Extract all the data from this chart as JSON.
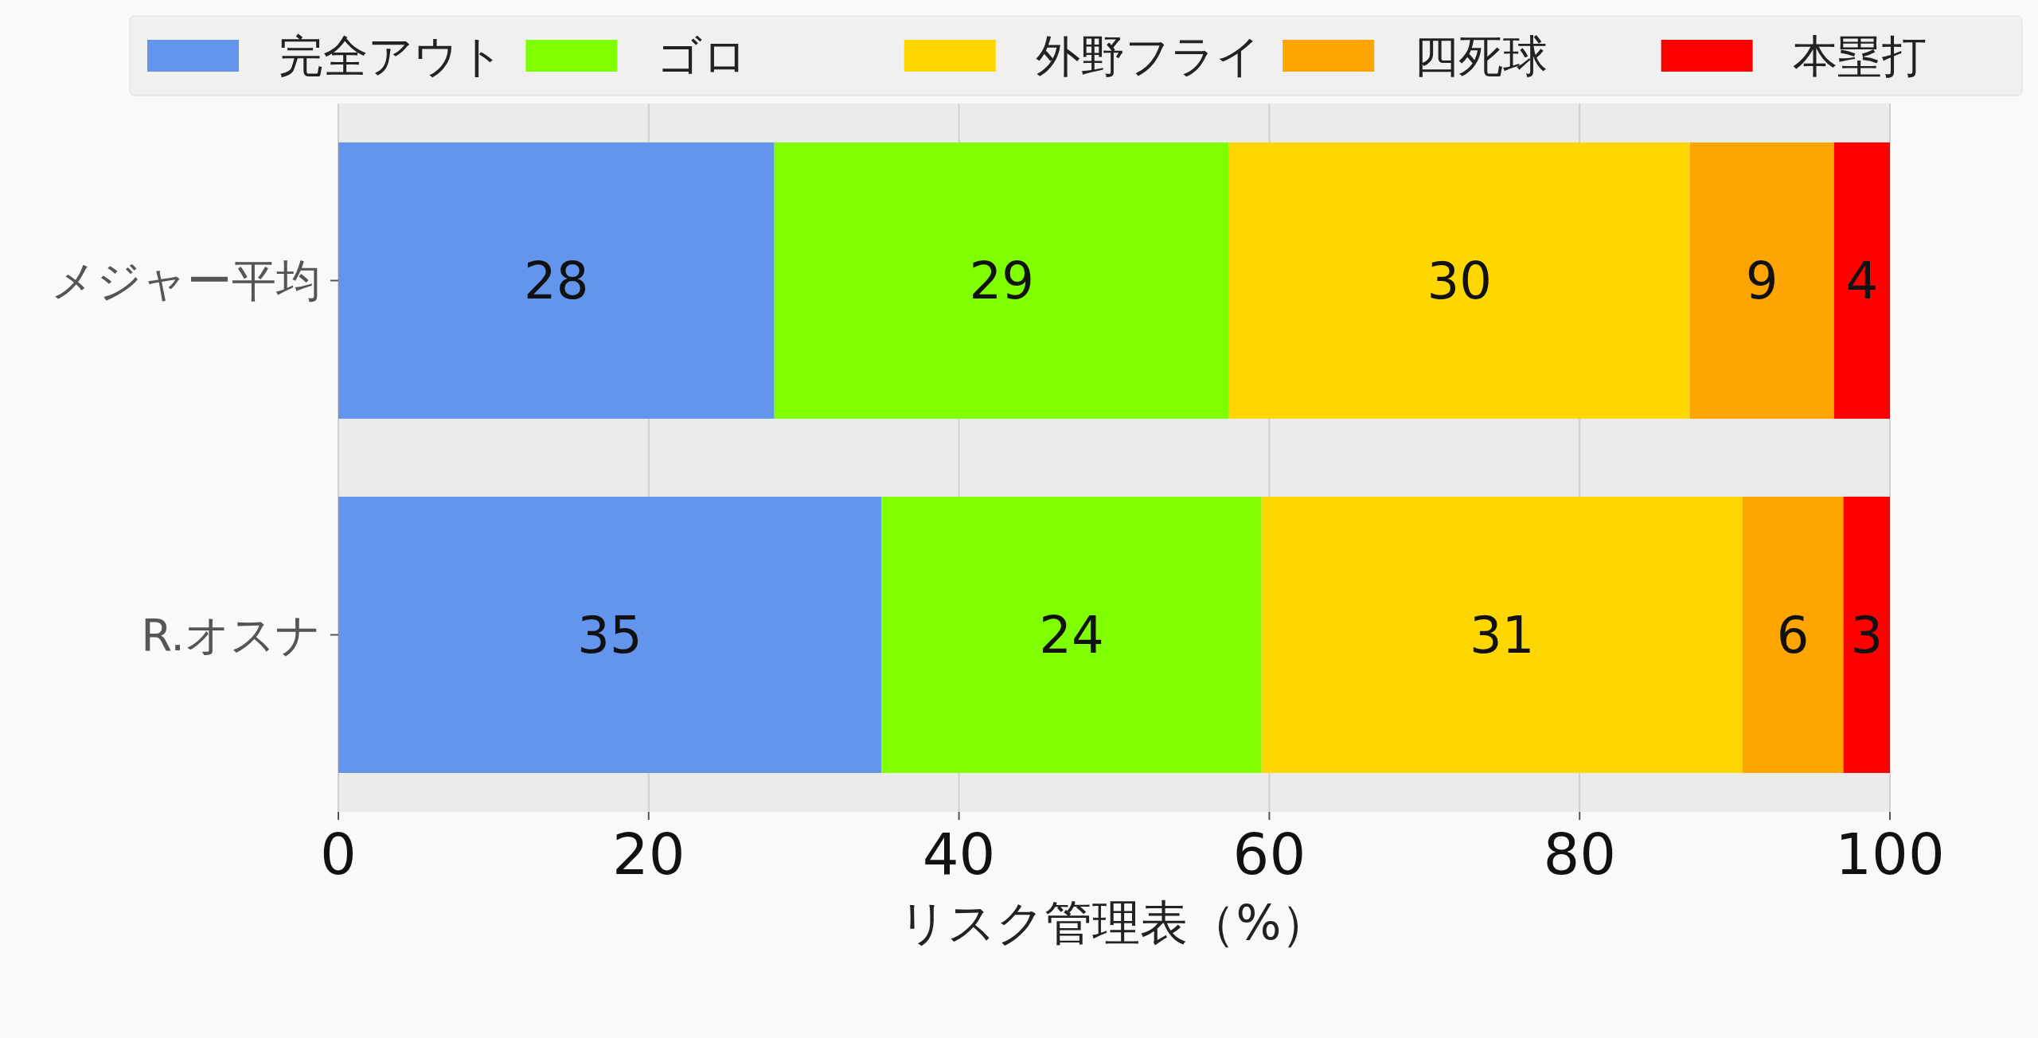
{
  "chart_data": {
    "type": "bar",
    "orientation": "horizontal",
    "stacked": true,
    "categories": [
      "メジャー平均",
      "R.オスナ"
    ],
    "series": [
      {
        "name": "完全アウト",
        "color": "#6495ed",
        "values": [
          28.1,
          35.0
        ],
        "value_labels": [
          "28",
          "35"
        ]
      },
      {
        "name": "ゴロ",
        "color": "#7fff00",
        "values": [
          29.3,
          24.5
        ],
        "value_labels": [
          "29",
          "24"
        ]
      },
      {
        "name": "外野フライ",
        "color": "#ffd700",
        "values": [
          29.7,
          31.0
        ],
        "value_labels": [
          "30",
          "31"
        ]
      },
      {
        "name": "四死球",
        "color": "#ffa500",
        "values": [
          9.3,
          6.5
        ],
        "value_labels": [
          "9",
          "6"
        ]
      },
      {
        "name": "本塁打",
        "color": "#ff0000",
        "values": [
          3.6,
          3.0
        ],
        "value_labels": [
          "4",
          "3"
        ]
      }
    ],
    "xlim": [
      0,
      100
    ],
    "xticks": [
      0,
      20,
      40,
      60,
      80,
      100
    ],
    "xlabel": "リスク管理表（%）",
    "grid": "x",
    "legend": "top"
  }
}
